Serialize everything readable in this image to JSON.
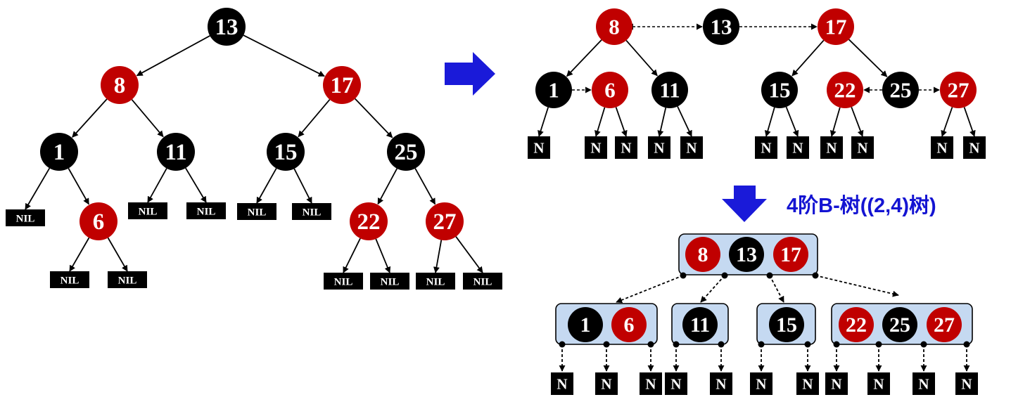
{
  "colors": {
    "red": "#c00000",
    "black": "#000000",
    "arrow_blue": "#1a1ad9",
    "caption_blue": "#1414d2",
    "bnode_fill": "#c5d9f1",
    "edge": "#000000"
  },
  "nil_label": "NIL",
  "n_label": "N",
  "caption": "4阶B-树((2,4)树)",
  "tree": {
    "nodes": [
      {
        "id": "r13",
        "label": "13",
        "color": "black"
      },
      {
        "id": "r8",
        "label": "8",
        "color": "red"
      },
      {
        "id": "r17",
        "label": "17",
        "color": "red"
      },
      {
        "id": "r1",
        "label": "1",
        "color": "black"
      },
      {
        "id": "r11",
        "label": "11",
        "color": "black"
      },
      {
        "id": "r15",
        "label": "15",
        "color": "black"
      },
      {
        "id": "r25",
        "label": "25",
        "color": "black"
      },
      {
        "id": "r6",
        "label": "6",
        "color": "red"
      },
      {
        "id": "r22",
        "label": "22",
        "color": "red"
      },
      {
        "id": "r27",
        "label": "27",
        "color": "red"
      }
    ]
  },
  "grouped": {
    "nodes": [
      {
        "id": "g8",
        "label": "8",
        "color": "red"
      },
      {
        "id": "g13",
        "label": "13",
        "color": "black"
      },
      {
        "id": "g17",
        "label": "17",
        "color": "red"
      },
      {
        "id": "g1",
        "label": "1",
        "color": "black"
      },
      {
        "id": "g6",
        "label": "6",
        "color": "red"
      },
      {
        "id": "g11",
        "label": "11",
        "color": "black"
      },
      {
        "id": "g15",
        "label": "15",
        "color": "black"
      },
      {
        "id": "g22",
        "label": "22",
        "color": "red"
      },
      {
        "id": "g25",
        "label": "25",
        "color": "black"
      },
      {
        "id": "g27",
        "label": "27",
        "color": "red"
      }
    ]
  },
  "btree": {
    "nodes": [
      {
        "id": "b8",
        "label": "8",
        "color": "red"
      },
      {
        "id": "b13",
        "label": "13",
        "color": "black"
      },
      {
        "id": "b17",
        "label": "17",
        "color": "red"
      },
      {
        "id": "b1",
        "label": "1",
        "color": "black"
      },
      {
        "id": "b6",
        "label": "6",
        "color": "red"
      },
      {
        "id": "b11",
        "label": "11",
        "color": "black"
      },
      {
        "id": "b15",
        "label": "15",
        "color": "black"
      },
      {
        "id": "b22",
        "label": "22",
        "color": "red"
      },
      {
        "id": "b25",
        "label": "25",
        "color": "black"
      },
      {
        "id": "b27",
        "label": "27",
        "color": "red"
      }
    ]
  }
}
